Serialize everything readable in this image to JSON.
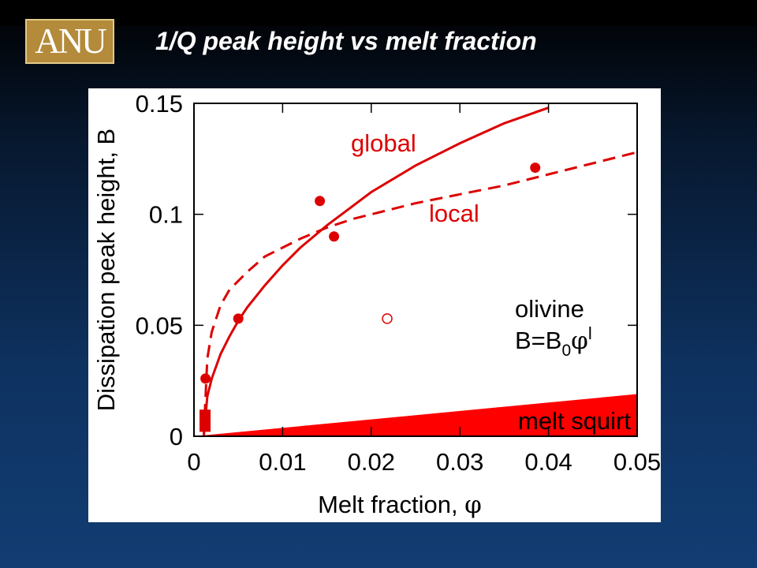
{
  "header": {
    "logo_text": "ANU",
    "title": "1/Q peak height vs melt fraction"
  },
  "colors": {
    "series": "#dd0000",
    "fill": "#ff0000",
    "axis": "#000000"
  },
  "chart_data": {
    "type": "scatter",
    "title": "",
    "xlabel": "Melt fraction, ",
    "xlabel_symbol": "φ",
    "ylabel": "Dissipation peak height, B",
    "xlim": [
      0,
      0.05
    ],
    "ylim": [
      0,
      0.15
    ],
    "x_ticks": [
      "0",
      "0.01",
      "0.02",
      "0.03",
      "0.04",
      "0.05"
    ],
    "y_ticks": [
      "0",
      "0.05",
      "0.1",
      "0.15"
    ],
    "x_tick_values": [
      0,
      0.01,
      0.02,
      0.03,
      0.04,
      0.05
    ],
    "y_tick_values": [
      0,
      0.05,
      0.1,
      0.15
    ],
    "grid": false,
    "series": [
      {
        "name": "global",
        "kind": "line",
        "style": "solid",
        "x": [
          0.0011,
          0.0015,
          0.002,
          0.003,
          0.004,
          0.005,
          0.006,
          0.008,
          0.01,
          0.012,
          0.015,
          0.018,
          0.02,
          0.025,
          0.03,
          0.035,
          0.04,
          0.0385
        ],
        "y": [
          0.0,
          0.018,
          0.026,
          0.037,
          0.045,
          0.052,
          0.058,
          0.068,
          0.077,
          0.085,
          0.095,
          0.104,
          0.11,
          0.122,
          0.132,
          0.141,
          0.148,
          0.146
        ]
      },
      {
        "name": "local",
        "kind": "line",
        "style": "dashed",
        "x": [
          0.0011,
          0.0015,
          0.002,
          0.003,
          0.004,
          0.006,
          0.008,
          0.01,
          0.012,
          0.015,
          0.018,
          0.02,
          0.025,
          0.03,
          0.035,
          0.04,
          0.045,
          0.05
        ],
        "y": [
          0.0,
          0.035,
          0.047,
          0.059,
          0.066,
          0.074,
          0.081,
          0.085,
          0.089,
          0.094,
          0.098,
          0.1,
          0.105,
          0.109,
          0.113,
          0.118,
          0.123,
          0.128
        ]
      },
      {
        "name": "",
        "kind": "points",
        "marker": "filled-circle",
        "x": [
          0.0013,
          0.005,
          0.0142,
          0.0158,
          0.0385
        ],
        "y": [
          0.026,
          0.053,
          0.106,
          0.09,
          0.121
        ]
      },
      {
        "name": "",
        "kind": "points",
        "marker": "open-circle",
        "x": [
          0.0218
        ],
        "y": [
          0.053
        ]
      },
      {
        "name": "",
        "kind": "bar",
        "marker": "filled-rect",
        "x": [
          0.00125
        ],
        "y_range": [
          0.002,
          0.012
        ]
      }
    ],
    "region": {
      "name": "melt squirt",
      "x": [
        0.0,
        0.05
      ],
      "y_upper": [
        0.0,
        0.019
      ]
    },
    "annotations": {
      "global": "global",
      "local": "local",
      "material": "olivine",
      "formula_main": "B=B",
      "formula_sub": "0",
      "formula_phi": "φ",
      "formula_sup": "l",
      "region_label": "melt squirt"
    }
  }
}
